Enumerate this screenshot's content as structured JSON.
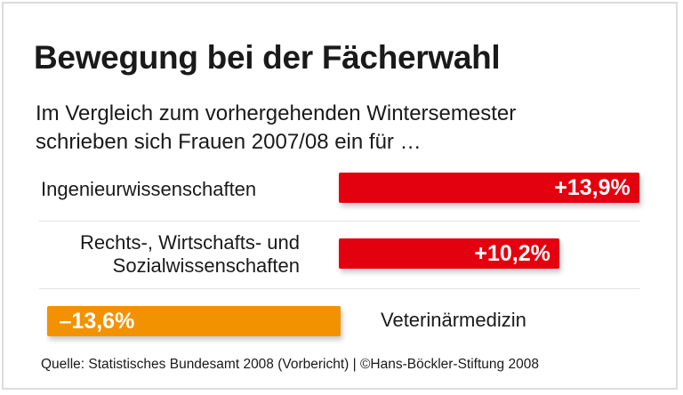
{
  "chart_data": {
    "type": "bar",
    "orientation": "horizontal",
    "title": "Bewegung bei der Fächerwahl",
    "subtitle": [
      "Im Vergleich zum vorhergehenden Wintersemester",
      "schrieben sich Frauen 2007/08 ein für …"
    ],
    "categories": [
      "Ingenieurwissenschaften",
      "Rechts-, Wirtschafts- und Sozialwissenschaften",
      "Veterinärmedizin"
    ],
    "category_lines": [
      [
        "Ingenieurwissenschaften"
      ],
      [
        "Rechts-, Wirtschafts- und",
        "Sozialwissenschaften"
      ],
      [
        "Veterinärmedizin"
      ]
    ],
    "values": [
      13.9,
      10.2,
      -13.6
    ],
    "value_labels": [
      "+13,9%",
      "+10,2%",
      "–13,6%"
    ],
    "unit": "%",
    "colors": {
      "positive": "#e3000f",
      "negative": "#f39200"
    },
    "grid": false,
    "source": "Quelle: Statistisches Bundesamt 2008 (Vorbericht) | ©Hans-Böckler-Stiftung 2008"
  }
}
